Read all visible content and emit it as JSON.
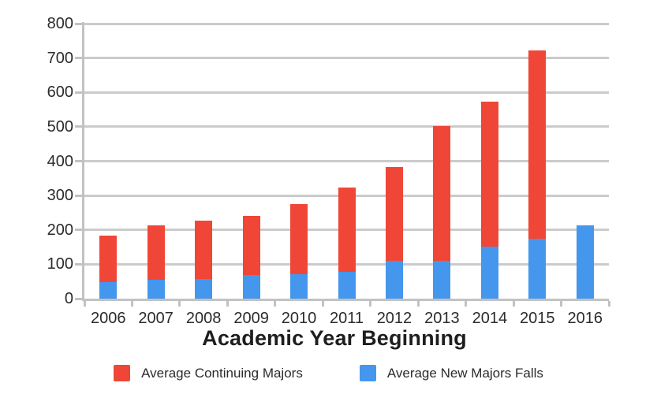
{
  "chart_data": {
    "type": "bar",
    "stacked": true,
    "title": "",
    "xlabel": "Academic Year Beginning",
    "ylabel": "",
    "categories": [
      "2006",
      "2007",
      "2008",
      "2009",
      "2010",
      "2011",
      "2012",
      "2013",
      "2014",
      "2015",
      "2016"
    ],
    "series": [
      {
        "name": "Average New Majors Falls",
        "color": "#4497ED",
        "values": [
          48,
          56,
          58,
          69,
          72,
          78,
          111,
          111,
          151,
          174,
          213
        ]
      },
      {
        "name": "Average Continuing Majors",
        "color": "#F04638",
        "values": [
          135,
          158,
          170,
          171,
          203,
          245,
          272,
          391,
          421,
          549,
          0
        ]
      }
    ],
    "stacked_totals": [
      183,
      214,
      228,
      240,
      275,
      323,
      383,
      502,
      572,
      723,
      213
    ],
    "ylim": [
      0,
      800
    ],
    "y_ticks": [
      0,
      100,
      200,
      300,
      400,
      500,
      600,
      700,
      800
    ],
    "grid": true,
    "legend_position": "bottom"
  },
  "legend": {
    "items": [
      {
        "label": "Average Continuing Majors",
        "color": "#F04638"
      },
      {
        "label": "Average New Majors Falls",
        "color": "#4497ED"
      }
    ]
  },
  "colors": {
    "gridline": "#cbcbcb",
    "axis": "#c2c2c2",
    "tick_text": "#2b2b2b"
  }
}
